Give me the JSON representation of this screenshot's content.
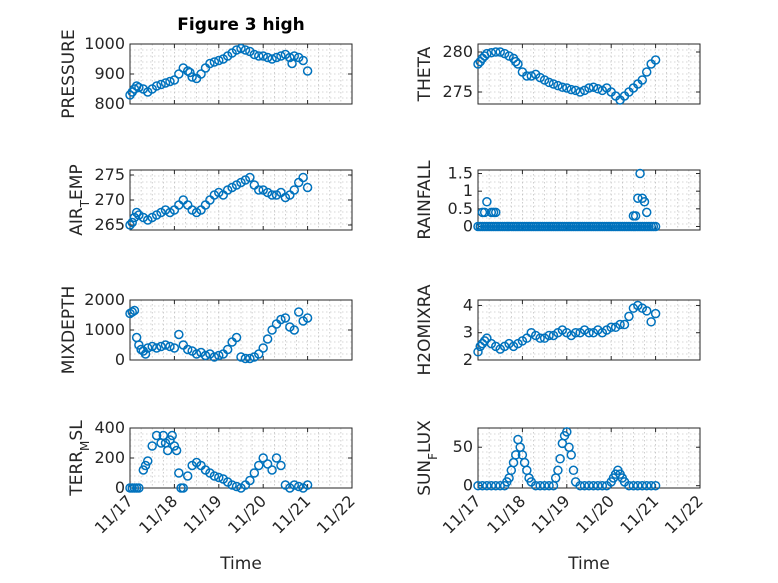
{
  "chart_data": [
    {
      "type": "scatter",
      "title": "Figure 3 high",
      "ylabel": "PRESSURE",
      "ylabel_sub": "",
      "ylabel_tail": "",
      "xlabel": "",
      "ylim": [
        800,
        1000
      ],
      "yticks": [
        800,
        900,
        1000
      ],
      "ytick_labels": [
        "800",
        "900",
        "1000"
      ],
      "xlim": [
        0,
        5
      ],
      "xticks": [
        0,
        1,
        2,
        3,
        4,
        5
      ],
      "xtick_labels": [
        "",
        "",
        "",
        "",
        "",
        ""
      ],
      "grid": true,
      "color": "#0072BD",
      "x": [
        0,
        0.05,
        0.1,
        0.15,
        0.2,
        0.3,
        0.4,
        0.5,
        0.6,
        0.7,
        0.8,
        0.9,
        1.0,
        1.1,
        1.2,
        1.3,
        1.35,
        1.4,
        1.5,
        1.6,
        1.7,
        1.8,
        1.9,
        2.0,
        2.1,
        2.2,
        2.3,
        2.4,
        2.5,
        2.6,
        2.7,
        2.8,
        2.9,
        3.0,
        3.1,
        3.2,
        3.3,
        3.4,
        3.5,
        3.6,
        3.65,
        3.7,
        3.8,
        3.9,
        4.0
      ],
      "y": [
        830,
        840,
        850,
        860,
        855,
        850,
        840,
        850,
        860,
        865,
        870,
        875,
        880,
        900,
        920,
        910,
        905,
        890,
        885,
        900,
        920,
        935,
        940,
        945,
        950,
        960,
        970,
        980,
        985,
        980,
        975,
        965,
        960,
        960,
        955,
        950,
        955,
        960,
        965,
        955,
        935,
        960,
        955,
        945,
        910
      ]
    },
    {
      "type": "scatter",
      "title": "",
      "ylabel": "THETA",
      "ylabel_sub": "",
      "ylabel_tail": "",
      "xlabel": "",
      "ylim": [
        273.5,
        281
      ],
      "yticks": [
        275,
        280
      ],
      "ytick_labels": [
        "275",
        "280"
      ],
      "xlim": [
        0,
        5
      ],
      "xticks": [
        0,
        1,
        2,
        3,
        4,
        5
      ],
      "xtick_labels": [
        "",
        "",
        "",
        "",
        "",
        ""
      ],
      "grid": true,
      "color": "#0072BD",
      "x": [
        0,
        0.05,
        0.1,
        0.15,
        0.2,
        0.3,
        0.4,
        0.5,
        0.6,
        0.7,
        0.8,
        0.85,
        0.9,
        1.0,
        1.1,
        1.2,
        1.3,
        1.4,
        1.5,
        1.6,
        1.7,
        1.8,
        1.9,
        2.0,
        2.1,
        2.2,
        2.3,
        2.4,
        2.5,
        2.6,
        2.7,
        2.8,
        2.9,
        3.0,
        3.1,
        3.2,
        3.3,
        3.4,
        3.5,
        3.6,
        3.7,
        3.8,
        3.9,
        4.0
      ],
      "y": [
        278.5,
        278.8,
        279.2,
        279.5,
        279.8,
        279.9,
        280,
        280,
        279.8,
        279.5,
        279.2,
        278.8,
        278.5,
        277.5,
        277,
        277,
        277.2,
        276.8,
        276.5,
        276.2,
        276,
        275.8,
        275.6,
        275.5,
        275.3,
        275.2,
        275,
        275.2,
        275.5,
        275.6,
        275.4,
        275.2,
        275.5,
        275,
        274.5,
        274,
        274.5,
        275,
        275.5,
        276,
        276.5,
        277.5,
        278.5,
        279
      ]
    },
    {
      "type": "scatter",
      "title": "",
      "ylabel": "AIR",
      "ylabel_sub": "T",
      "ylabel_tail": "EMP",
      "xlabel": "",
      "ylim": [
        264,
        276
      ],
      "yticks": [
        265,
        270,
        275
      ],
      "ytick_labels": [
        "265",
        "270",
        "275"
      ],
      "xlim": [
        0,
        5
      ],
      "xticks": [
        0,
        1,
        2,
        3,
        4,
        5
      ],
      "xtick_labels": [
        "",
        "",
        "",
        "",
        "",
        ""
      ],
      "grid": true,
      "color": "#0072BD",
      "x": [
        0,
        0.05,
        0.1,
        0.15,
        0.2,
        0.3,
        0.4,
        0.5,
        0.6,
        0.7,
        0.8,
        0.9,
        1.0,
        1.1,
        1.2,
        1.3,
        1.4,
        1.5,
        1.6,
        1.7,
        1.8,
        1.9,
        2.0,
        2.1,
        2.2,
        2.3,
        2.4,
        2.5,
        2.6,
        2.7,
        2.8,
        2.9,
        3.0,
        3.1,
        3.2,
        3.3,
        3.4,
        3.5,
        3.6,
        3.7,
        3.8,
        3.9,
        4.0
      ],
      "y": [
        265,
        265.5,
        266.5,
        267.5,
        267,
        266.5,
        266,
        266.5,
        267,
        267.5,
        268,
        267.5,
        268,
        269,
        270,
        269,
        268,
        267.5,
        268,
        269,
        270,
        271,
        271.5,
        271,
        272,
        272.5,
        273,
        273.5,
        274,
        274.5,
        273,
        272,
        272,
        271.5,
        271,
        271,
        271.5,
        270.5,
        271,
        272,
        273.5,
        274.5,
        272.5
      ]
    },
    {
      "type": "scatter",
      "title": "",
      "ylabel": "RAINFALL",
      "ylabel_sub": "",
      "ylabel_tail": "",
      "xlabel": "",
      "ylim": [
        -0.1,
        1.6
      ],
      "yticks": [
        0,
        0.5,
        1,
        1.5
      ],
      "ytick_labels": [
        "0",
        "0.5",
        "1",
        "1.5"
      ],
      "xlim": [
        0,
        5
      ],
      "xticks": [
        0,
        1,
        2,
        3,
        4,
        5
      ],
      "xtick_labels": [
        "",
        "",
        "",
        "",
        "",
        ""
      ],
      "grid": true,
      "color": "#0072BD",
      "x": [
        0,
        0.05,
        0.1,
        0.15,
        0.2,
        0.25,
        0.3,
        0.35,
        0.4,
        0.45,
        0.5,
        0.55,
        0.6,
        0.65,
        0.7,
        0.75,
        0.8,
        0.85,
        0.9,
        0.95,
        1.0,
        1.05,
        1.1,
        1.15,
        1.2,
        1.25,
        1.3,
        1.35,
        1.4,
        1.45,
        1.5,
        1.55,
        1.6,
        1.65,
        1.7,
        1.75,
        1.8,
        1.85,
        1.9,
        1.95,
        2.0,
        2.05,
        2.1,
        2.15,
        2.2,
        2.25,
        2.3,
        2.35,
        2.4,
        2.45,
        2.5,
        2.55,
        2.6,
        2.65,
        2.7,
        2.75,
        2.8,
        2.85,
        2.9,
        2.95,
        3.0,
        3.05,
        3.1,
        3.15,
        3.2,
        3.25,
        3.3,
        3.35,
        3.4,
        3.45,
        3.5,
        3.55,
        3.6,
        3.65,
        3.7,
        3.75,
        3.8,
        3.85,
        3.9,
        3.95,
        4.0,
        0.1,
        0.15,
        0.2,
        0.3,
        0.35,
        0.4,
        3.5,
        3.55,
        3.6,
        3.65,
        3.7,
        3.75,
        3.8
      ],
      "y": [
        0,
        0,
        0,
        0,
        0,
        0,
        0,
        0,
        0,
        0,
        0,
        0,
        0,
        0,
        0,
        0,
        0,
        0,
        0,
        0,
        0,
        0,
        0,
        0,
        0,
        0,
        0,
        0,
        0,
        0,
        0,
        0,
        0,
        0,
        0,
        0,
        0,
        0,
        0,
        0,
        0,
        0,
        0,
        0,
        0,
        0,
        0,
        0,
        0,
        0,
        0,
        0,
        0,
        0,
        0,
        0,
        0,
        0,
        0,
        0,
        0,
        0,
        0,
        0,
        0,
        0,
        0,
        0,
        0,
        0,
        0,
        0,
        0,
        0,
        0,
        0,
        0,
        0,
        0,
        0,
        0,
        0.4,
        0.4,
        0.7,
        0.4,
        0.4,
        0.4,
        0.3,
        0.3,
        0.8,
        1.5,
        0.8,
        0.7,
        0.4
      ]
    },
    {
      "type": "scatter",
      "title": "",
      "ylabel": "MIXDEPTH",
      "ylabel_sub": "",
      "ylabel_tail": "",
      "xlabel": "",
      "ylim": [
        0,
        2000
      ],
      "yticks": [
        0,
        1000,
        2000
      ],
      "ytick_labels": [
        "0",
        "1000",
        "2000"
      ],
      "xlim": [
        0,
        5
      ],
      "xticks": [
        0,
        1,
        2,
        3,
        4,
        5
      ],
      "xtick_labels": [
        "",
        "",
        "",
        "",
        "",
        ""
      ],
      "grid": true,
      "color": "#0072BD",
      "x": [
        0,
        0.05,
        0.1,
        0.15,
        0.2,
        0.25,
        0.3,
        0.35,
        0.4,
        0.5,
        0.6,
        0.7,
        0.8,
        0.9,
        1.0,
        1.1,
        1.2,
        1.3,
        1.4,
        1.5,
        1.6,
        1.7,
        1.8,
        1.9,
        2.0,
        2.1,
        2.2,
        2.3,
        2.4,
        2.5,
        2.6,
        2.7,
        2.8,
        2.9,
        3.0,
        3.1,
        3.2,
        3.3,
        3.4,
        3.5,
        3.6,
        3.7,
        3.8,
        3.9,
        4.0
      ],
      "y": [
        1550,
        1600,
        1650,
        750,
        500,
        350,
        300,
        200,
        400,
        450,
        400,
        450,
        500,
        450,
        400,
        850,
        500,
        350,
        300,
        200,
        250,
        150,
        200,
        100,
        150,
        200,
        350,
        600,
        750,
        100,
        50,
        50,
        100,
        200,
        400,
        700,
        1000,
        1200,
        1350,
        1400,
        1100,
        1000,
        1600,
        1300,
        1400
      ]
    },
    {
      "type": "scatter",
      "title": "",
      "ylabel": "H2OMIXRA",
      "ylabel_sub": "",
      "ylabel_tail": "",
      "xlabel": "",
      "ylim": [
        2,
        4.2
      ],
      "yticks": [
        2,
        3,
        4
      ],
      "ytick_labels": [
        "2",
        "3",
        "4"
      ],
      "xlim": [
        0,
        5
      ],
      "xticks": [
        0,
        1,
        2,
        3,
        4,
        5
      ],
      "xtick_labels": [
        "",
        "",
        "",
        "",
        "",
        ""
      ],
      "grid": true,
      "color": "#0072BD",
      "x": [
        0,
        0.05,
        0.1,
        0.15,
        0.2,
        0.3,
        0.4,
        0.5,
        0.6,
        0.7,
        0.8,
        0.9,
        1.0,
        1.1,
        1.2,
        1.3,
        1.4,
        1.5,
        1.6,
        1.7,
        1.8,
        1.9,
        2.0,
        2.1,
        2.2,
        2.3,
        2.4,
        2.5,
        2.6,
        2.7,
        2.8,
        2.9,
        3.0,
        3.1,
        3.2,
        3.3,
        3.4,
        3.5,
        3.6,
        3.7,
        3.8,
        3.9,
        4.0
      ],
      "y": [
        2.3,
        2.5,
        2.6,
        2.7,
        2.8,
        2.6,
        2.5,
        2.4,
        2.5,
        2.6,
        2.5,
        2.6,
        2.7,
        2.8,
        3.0,
        2.9,
        2.8,
        2.8,
        2.9,
        2.9,
        3.0,
        3.1,
        3.0,
        2.9,
        3.0,
        3.0,
        3.1,
        3.0,
        3.0,
        3.1,
        3.0,
        3.1,
        3.2,
        3.2,
        3.3,
        3.3,
        3.6,
        3.9,
        4.0,
        3.9,
        3.8,
        3.4,
        3.7
      ]
    },
    {
      "type": "scatter",
      "title": "",
      "ylabel": "TERR",
      "ylabel_sub": "M",
      "ylabel_tail": "SL",
      "xlabel": "Time",
      "ylim": [
        0,
        400
      ],
      "yticks": [
        0,
        200,
        400
      ],
      "ytick_labels": [
        "0",
        "200",
        "400"
      ],
      "xlim": [
        0,
        5
      ],
      "xticks": [
        0,
        1,
        2,
        3,
        4,
        5
      ],
      "xtick_labels": [
        "11/17",
        "11/18",
        "11/19",
        "11/20",
        "11/21",
        "11/22"
      ],
      "grid": true,
      "color": "#0072BD",
      "x": [
        0,
        0.05,
        0.1,
        0.15,
        0.2,
        0.3,
        0.35,
        0.4,
        0.5,
        0.6,
        0.7,
        0.75,
        0.8,
        0.85,
        0.9,
        0.95,
        1.0,
        1.05,
        1.1,
        1.15,
        1.2,
        1.3,
        1.4,
        1.5,
        1.6,
        1.7,
        1.8,
        1.9,
        2.0,
        2.1,
        2.2,
        2.3,
        2.4,
        2.5,
        2.6,
        2.7,
        2.8,
        2.9,
        3.0,
        3.1,
        3.2,
        3.3,
        3.4,
        3.5,
        3.6,
        3.7,
        3.8,
        3.9,
        4.0
      ],
      "y": [
        0,
        0,
        0,
        0,
        0,
        120,
        150,
        180,
        280,
        350,
        300,
        350,
        300,
        250,
        320,
        350,
        280,
        250,
        100,
        0,
        0,
        80,
        150,
        170,
        150,
        120,
        100,
        80,
        70,
        60,
        40,
        20,
        10,
        0,
        20,
        50,
        100,
        150,
        200,
        160,
        120,
        200,
        150,
        20,
        0,
        20,
        10,
        0,
        20
      ]
    },
    {
      "type": "scatter",
      "title": "",
      "ylabel": "SUN",
      "ylabel_sub": "F",
      "ylabel_tail": "LUX",
      "xlabel": "Time",
      "ylim": [
        -3,
        75
      ],
      "yticks": [
        0,
        50
      ],
      "ytick_labels": [
        "0",
        "50"
      ],
      "xlim": [
        0,
        5
      ],
      "xticks": [
        0,
        1,
        2,
        3,
        4,
        5
      ],
      "xtick_labels": [
        "11/17",
        "11/18",
        "11/19",
        "11/20",
        "11/21",
        "11/22"
      ],
      "grid": true,
      "color": "#0072BD",
      "x": [
        0,
        0.1,
        0.2,
        0.3,
        0.4,
        0.5,
        0.6,
        0.65,
        0.7,
        0.75,
        0.8,
        0.85,
        0.9,
        0.95,
        1.0,
        1.05,
        1.1,
        1.15,
        1.2,
        1.3,
        1.4,
        1.5,
        1.6,
        1.7,
        1.75,
        1.8,
        1.85,
        1.9,
        1.95,
        2.0,
        2.05,
        2.1,
        2.15,
        2.2,
        2.3,
        2.4,
        2.5,
        2.6,
        2.7,
        2.8,
        2.9,
        3.0,
        3.05,
        3.1,
        3.15,
        3.2,
        3.25,
        3.3,
        3.4,
        3.5,
        3.6,
        3.7,
        3.8,
        3.9,
        4.0
      ],
      "y": [
        0,
        0,
        0,
        0,
        0,
        0,
        0,
        5,
        10,
        20,
        30,
        40,
        60,
        50,
        40,
        30,
        20,
        10,
        5,
        0,
        0,
        0,
        0,
        0,
        10,
        20,
        35,
        55,
        65,
        70,
        50,
        40,
        20,
        5,
        0,
        0,
        0,
        0,
        0,
        0,
        0,
        5,
        10,
        15,
        20,
        15,
        10,
        5,
        0,
        0,
        0,
        0,
        0,
        0,
        0
      ]
    }
  ]
}
